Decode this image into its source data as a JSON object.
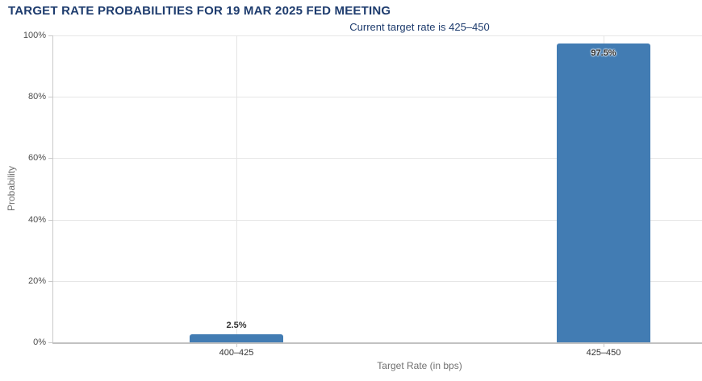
{
  "header": {
    "title": "TARGET RATE PROBABILITIES FOR 19 MAR 2025 FED MEETING",
    "subtitle": "Current target rate is 425–450"
  },
  "colors": {
    "title": "#1e3c6e",
    "subtitle": "#1e3c6e",
    "bar": "#427cb3",
    "gridline": "#e6e6e6",
    "axis_line": "#c9c9c9",
    "tick_label": "#4d4d4d",
    "data_label": "#333333",
    "axis_title": "#707070",
    "background": "#ffffff"
  },
  "chart_data": {
    "type": "bar",
    "title": "TARGET RATE PROBABILITIES FOR 19 MAR 2025 FED MEETING",
    "subtitle": "Current target rate is 425–450",
    "categories": [
      "400–425",
      "425–450"
    ],
    "values": [
      2.5,
      97.5
    ],
    "value_labels": [
      "2.5%",
      "97.5%"
    ],
    "xlabel": "Target Rate (in bps)",
    "ylabel": "Probability",
    "ylim": [
      0,
      100
    ],
    "ytick_step": 20,
    "ytick_labels": [
      "0%",
      "20%",
      "40%",
      "60%",
      "80%",
      "100%"
    ],
    "grid": true,
    "legend": false
  }
}
